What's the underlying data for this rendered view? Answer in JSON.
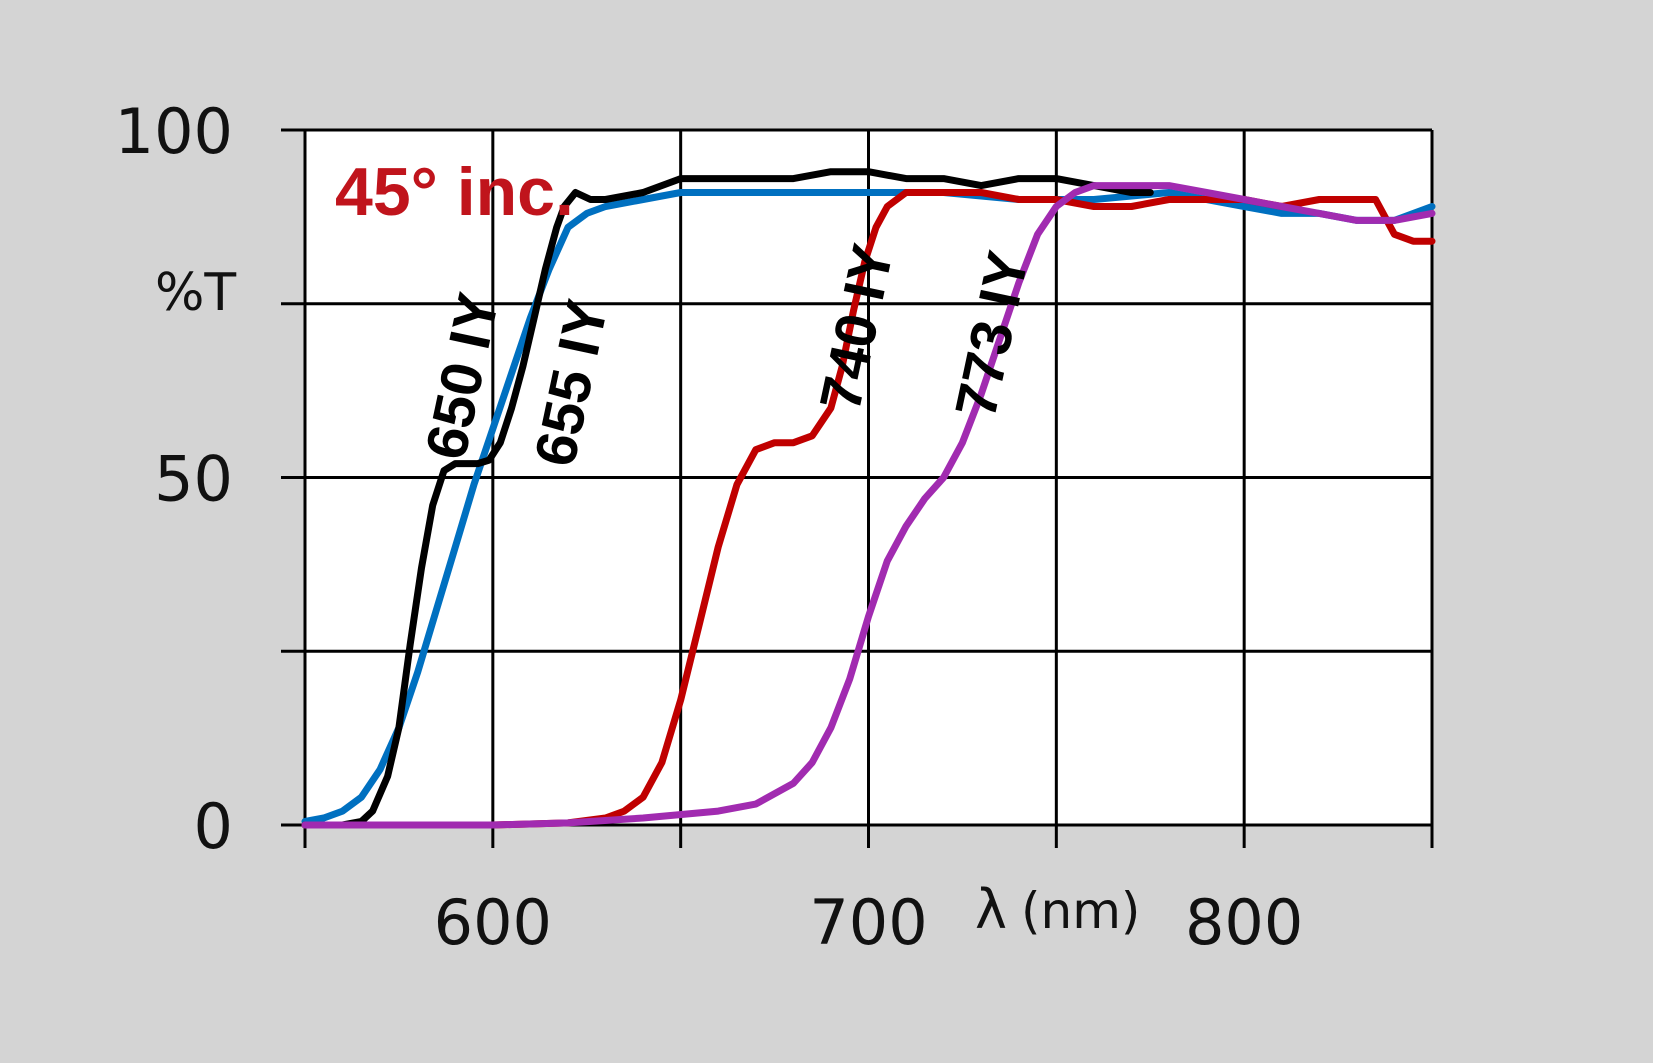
{
  "chart_data": {
    "type": "line",
    "annotation": "45° inc.",
    "annotation_color": "#c0141c",
    "ylabel": "%T",
    "xlabel_symbol": "λ",
    "xlabel_unit": "(nm)",
    "xlim": [
      550,
      850
    ],
    "ylim": [
      0,
      100
    ],
    "x_ticks": [
      550,
      600,
      650,
      700,
      750,
      800,
      850
    ],
    "x_tick_labels": [
      "600",
      "700",
      "800"
    ],
    "x_tick_label_values": [
      600,
      700,
      800
    ],
    "y_ticks": [
      0,
      25,
      50,
      75,
      100
    ],
    "y_tick_labels": [
      "100",
      "50",
      "0"
    ],
    "y_tick_label_values": [
      100,
      50,
      0
    ],
    "grid": true,
    "series": [
      {
        "name": "650 IY",
        "color": "#0070c0",
        "points": [
          [
            550,
            0.5
          ],
          [
            555,
            1
          ],
          [
            560,
            2
          ],
          [
            565,
            4
          ],
          [
            570,
            8
          ],
          [
            575,
            14
          ],
          [
            580,
            22
          ],
          [
            585,
            31
          ],
          [
            590,
            40
          ],
          [
            595,
            49
          ],
          [
            600,
            57
          ],
          [
            605,
            65
          ],
          [
            610,
            73
          ],
          [
            615,
            80
          ],
          [
            620,
            86
          ],
          [
            625,
            88
          ],
          [
            630,
            89
          ],
          [
            640,
            90
          ],
          [
            650,
            91
          ],
          [
            670,
            91
          ],
          [
            690,
            91
          ],
          [
            700,
            91
          ],
          [
            720,
            91
          ],
          [
            740,
            90
          ],
          [
            760,
            90
          ],
          [
            780,
            91
          ],
          [
            790,
            90
          ],
          [
            800,
            89
          ],
          [
            810,
            88
          ],
          [
            820,
            88
          ],
          [
            830,
            87
          ],
          [
            840,
            87
          ],
          [
            850,
            89
          ]
        ]
      },
      {
        "name": "655 IY",
        "color": "#000000",
        "points": [
          [
            550,
            0
          ],
          [
            560,
            0
          ],
          [
            565,
            0.5
          ],
          [
            568,
            2
          ],
          [
            572,
            7
          ],
          [
            575,
            14
          ],
          [
            578,
            26
          ],
          [
            581,
            37
          ],
          [
            584,
            46
          ],
          [
            587,
            51
          ],
          [
            590,
            52
          ],
          [
            593,
            52
          ],
          [
            596,
            52
          ],
          [
            599,
            52.5
          ],
          [
            602,
            55
          ],
          [
            605,
            60
          ],
          [
            608,
            66
          ],
          [
            611,
            73
          ],
          [
            614,
            80
          ],
          [
            617,
            86
          ],
          [
            619,
            89
          ],
          [
            622,
            91
          ],
          [
            626,
            90
          ],
          [
            630,
            90
          ],
          [
            640,
            91
          ],
          [
            650,
            93
          ],
          [
            660,
            93
          ],
          [
            670,
            93
          ],
          [
            680,
            93
          ],
          [
            690,
            94
          ],
          [
            700,
            94
          ],
          [
            710,
            93
          ],
          [
            720,
            93
          ],
          [
            730,
            92
          ],
          [
            740,
            93
          ],
          [
            750,
            93
          ],
          [
            760,
            92
          ],
          [
            770,
            91
          ],
          [
            775,
            91
          ]
        ]
      },
      {
        "name": "740 IY",
        "color": "#c00000",
        "points": [
          [
            550,
            0
          ],
          [
            600,
            0
          ],
          [
            620,
            0.3
          ],
          [
            630,
            1
          ],
          [
            635,
            2
          ],
          [
            640,
            4
          ],
          [
            645,
            9
          ],
          [
            650,
            18
          ],
          [
            655,
            29
          ],
          [
            660,
            40
          ],
          [
            665,
            49
          ],
          [
            670,
            54
          ],
          [
            675,
            55
          ],
          [
            680,
            55
          ],
          [
            685,
            56
          ],
          [
            690,
            60
          ],
          [
            693,
            66
          ],
          [
            696,
            74
          ],
          [
            699,
            81
          ],
          [
            702,
            86
          ],
          [
            705,
            89
          ],
          [
            710,
            91
          ],
          [
            720,
            91
          ],
          [
            730,
            91
          ],
          [
            740,
            90
          ],
          [
            750,
            90
          ],
          [
            760,
            89
          ],
          [
            770,
            89
          ],
          [
            780,
            90
          ],
          [
            790,
            90
          ],
          [
            800,
            90
          ],
          [
            810,
            89
          ],
          [
            820,
            90
          ],
          [
            830,
            90
          ],
          [
            835,
            90
          ],
          [
            838,
            87
          ],
          [
            840,
            85
          ],
          [
            845,
            84
          ],
          [
            850,
            84
          ]
        ]
      },
      {
        "name": "773 IY",
        "color": "#a12bb0",
        "points": [
          [
            550,
            0
          ],
          [
            600,
            0
          ],
          [
            620,
            0.3
          ],
          [
            640,
            1
          ],
          [
            660,
            2
          ],
          [
            670,
            3
          ],
          [
            680,
            6
          ],
          [
            685,
            9
          ],
          [
            690,
            14
          ],
          [
            695,
            21
          ],
          [
            700,
            30
          ],
          [
            705,
            38
          ],
          [
            710,
            43
          ],
          [
            715,
            47
          ],
          [
            720,
            50
          ],
          [
            725,
            55
          ],
          [
            730,
            62
          ],
          [
            735,
            70
          ],
          [
            740,
            78
          ],
          [
            745,
            85
          ],
          [
            750,
            89
          ],
          [
            755,
            91
          ],
          [
            760,
            92
          ],
          [
            770,
            92
          ],
          [
            780,
            92
          ],
          [
            790,
            91
          ],
          [
            800,
            90
          ],
          [
            810,
            89
          ],
          [
            820,
            88
          ],
          [
            830,
            87
          ],
          [
            840,
            87
          ],
          [
            850,
            88
          ]
        ]
      }
    ],
    "series_labels": [
      {
        "text": "650 IY",
        "at": [
          597,
          64
        ]
      },
      {
        "text": "655 IY",
        "at": [
          626,
          63
        ]
      },
      {
        "text": "740 IY",
        "at": [
          702,
          71
        ]
      },
      {
        "text": "773 IY",
        "at": [
          738,
          70
        ]
      }
    ]
  }
}
